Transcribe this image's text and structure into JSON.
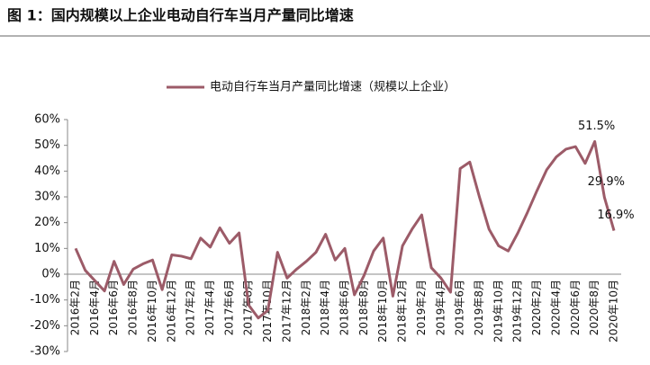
{
  "chart_data": {
    "type": "line",
    "title": "图 1：国内规模以上企业电动自行车当月产量同比增速",
    "categories": [
      "2016年2月",
      null,
      "2016年4月",
      null,
      "2016年6月",
      null,
      "2016年8月",
      null,
      "2016年10月",
      null,
      "2016年12月",
      null,
      "2017年2月",
      null,
      "2017年4月",
      null,
      "2017年6月",
      null,
      "2017年8月",
      null,
      "2017年10月",
      null,
      "2017年12月",
      null,
      "2018年2月",
      null,
      "2018年4月",
      null,
      "2018年6月",
      null,
      "2018年8月",
      null,
      "2018年10月",
      null,
      "2018年12月",
      null,
      "2019年2月",
      null,
      "2019年4月",
      null,
      "2019年6月",
      null,
      "2019年8月",
      null,
      "2019年10月",
      null,
      "2019年12月",
      null,
      "2020年2月",
      null,
      "2020年4月",
      null,
      "2020年6月",
      null,
      "2020年8月",
      null,
      "2020年10月"
    ],
    "series": [
      {
        "name": "电动自行车当月产量同比增速（规模以上企业）",
        "color": "#9c5b68",
        "values": [
          10,
          1.5,
          -2.5,
          -6.5,
          5,
          -4,
          2,
          4,
          5.5,
          -6,
          7.5,
          7,
          6,
          14,
          10.5,
          18,
          12,
          16,
          -12,
          -17,
          -14,
          8.5,
          -1.5,
          2,
          5,
          8.5,
          15.5,
          5.5,
          10,
          -8,
          -0.5,
          9,
          14,
          -8.5,
          11,
          17.5,
          23,
          2.5,
          -1.5,
          -7,
          41,
          43.5,
          30,
          17.5,
          11,
          9,
          16,
          24,
          32.5,
          40.5,
          45.5,
          48.5,
          49.5,
          43,
          51.5,
          29.9,
          16.9
        ],
        "value_labels": [
          null,
          null,
          null,
          null,
          null,
          null,
          null,
          null,
          null,
          null,
          null,
          null,
          null,
          null,
          null,
          null,
          null,
          null,
          null,
          null,
          null,
          null,
          null,
          null,
          null,
          null,
          null,
          null,
          null,
          null,
          null,
          null,
          null,
          null,
          null,
          null,
          null,
          null,
          null,
          null,
          null,
          null,
          null,
          null,
          null,
          null,
          null,
          null,
          null,
          null,
          null,
          null,
          null,
          null,
          "51.5%",
          "29.9%",
          "16.9%"
        ]
      }
    ],
    "ylim": [
      -30,
      60
    ],
    "yticks": [
      {
        "value": -30,
        "label": "-30%"
      },
      {
        "value": -20,
        "label": "-20%"
      },
      {
        "value": -10,
        "label": "-10%"
      },
      {
        "value": 0,
        "label": "0%"
      },
      {
        "value": 10,
        "label": "10%"
      },
      {
        "value": 20,
        "label": "20%"
      },
      {
        "value": 30,
        "label": "30%"
      },
      {
        "value": 40,
        "label": "40%"
      },
      {
        "value": 50,
        "label": "50%"
      },
      {
        "value": 60,
        "label": "60%"
      }
    ],
    "grid": false,
    "legend": "top"
  }
}
